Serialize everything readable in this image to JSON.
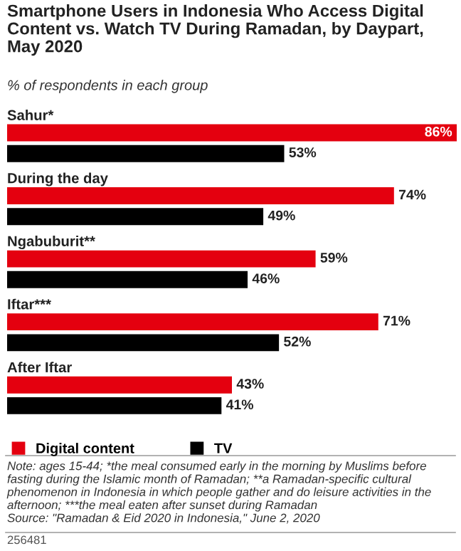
{
  "chart_data": {
    "type": "bar",
    "orientation": "horizontal",
    "title": "Smartphone Users in Indonesia Who Access Digital Content vs. Watch TV During Ramadan, by Daypart, May 2020",
    "subtitle": "% of respondents in each group",
    "categories": [
      "Sahur*",
      "During the day",
      "Ngabuburit**",
      "Iftar***",
      "After Iftar"
    ],
    "series": [
      {
        "name": "Digital content",
        "color": "#e4000f",
        "values": [
          86,
          74,
          59,
          71,
          43
        ],
        "value_labels": [
          "86%",
          "74%",
          "59%",
          "71%",
          "43%"
        ]
      },
      {
        "name": "TV",
        "color": "#000000",
        "values": [
          53,
          49,
          46,
          52,
          41
        ],
        "value_labels": [
          "53%",
          "49%",
          "46%",
          "52%",
          "41%"
        ]
      }
    ],
    "legend": "bottom",
    "annotations": [
      "Note: ages 15-44; *the meal consumed early in the morning by Muslims before fasting during the Islamic month of Ramadan; **a Ramadan-specific cultural phenomenon in Indonesia in which people gather and do leisure activities in the afternoon; ***the meal eaten after sunset during Ramadan",
      "Source: \"Ramadan & Eid 2020 in Indonesia,\" June 2, 2020",
      "256481"
    ]
  }
}
